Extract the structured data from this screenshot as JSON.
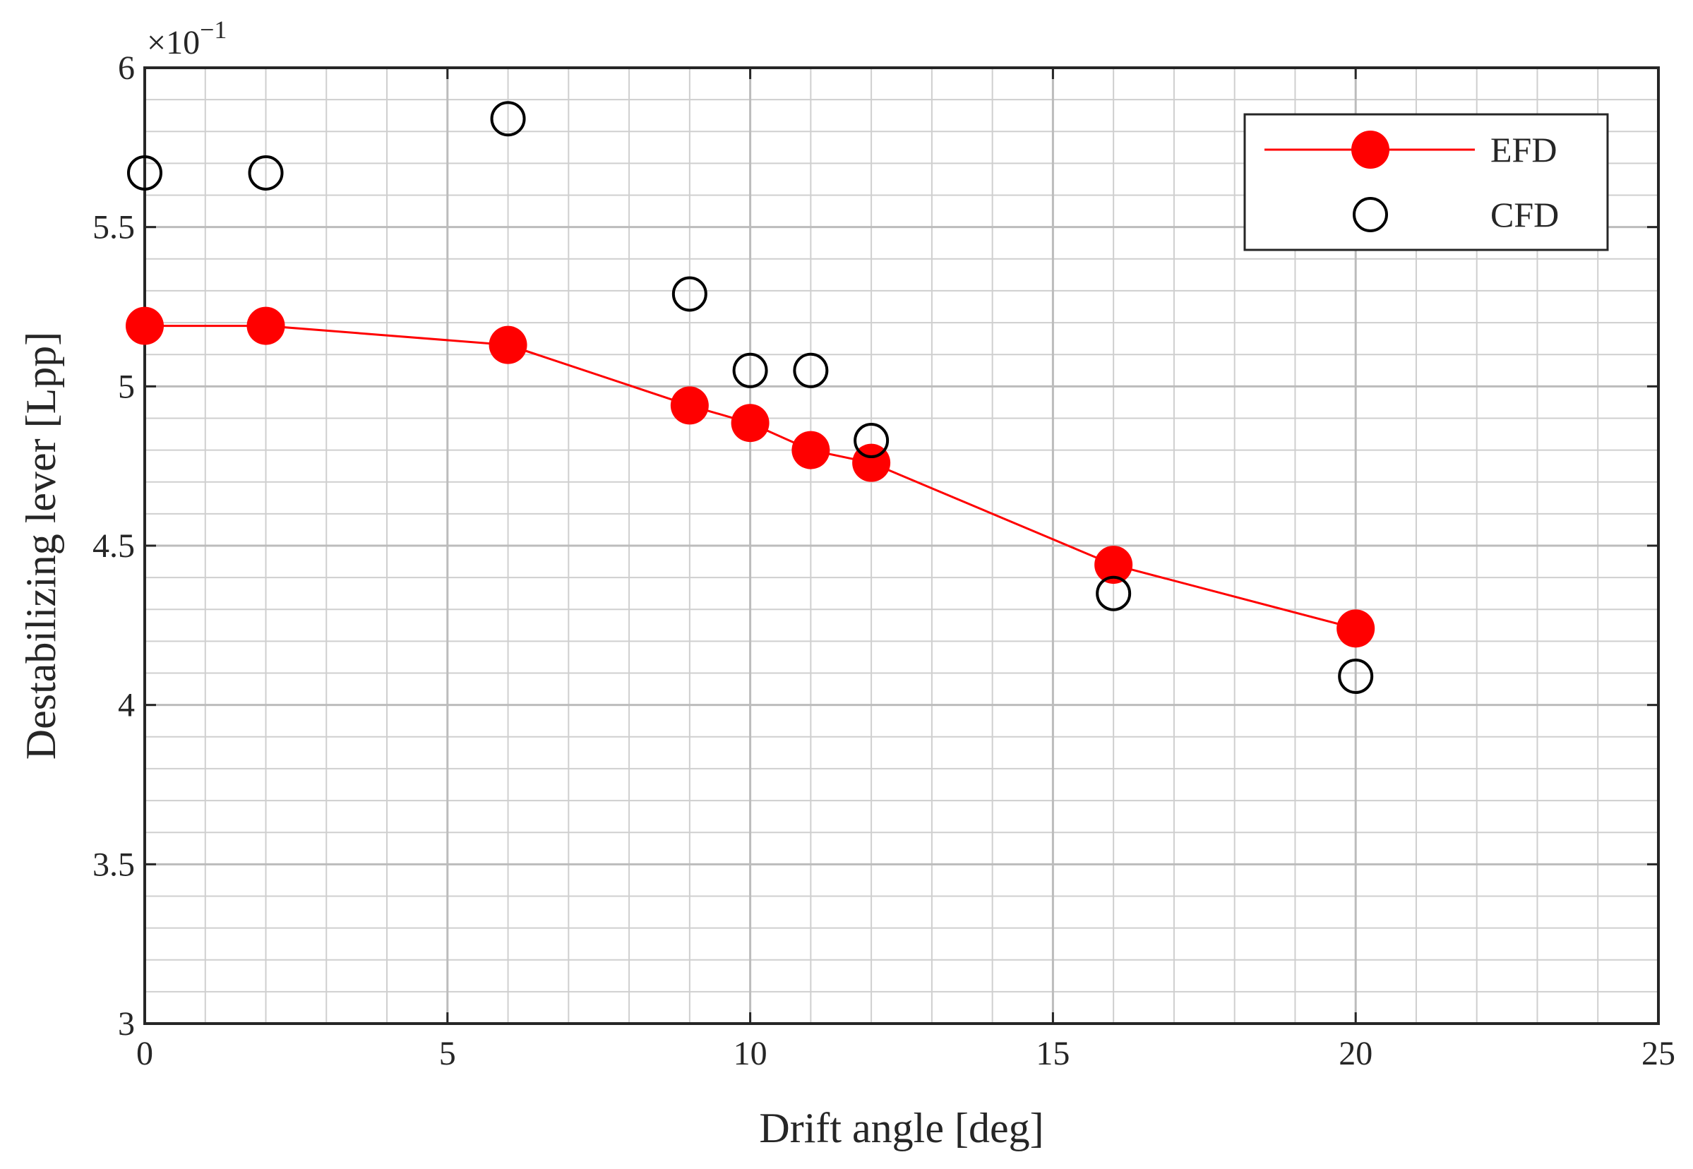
{
  "chart_data": {
    "type": "line",
    "x_label": "Drift angle [deg]",
    "y_label": "Destabilizing lever [Lpp]",
    "y_multiplier": {
      "base": "×10",
      "exponent": "−1"
    },
    "xlim": [
      0,
      25
    ],
    "xticks": [
      0,
      5,
      10,
      15,
      20,
      25
    ],
    "ylim": [
      3,
      6
    ],
    "yticks": [
      3,
      3.5,
      4,
      4.5,
      5,
      5.5,
      6
    ],
    "grid": true,
    "minor_grid": true,
    "legend": "upper right",
    "series": [
      {
        "name": "EFD",
        "color": "#ff0000",
        "marker": "filled",
        "line": true,
        "x": [
          0,
          2,
          6,
          9,
          10,
          11,
          12,
          16,
          20
        ],
        "values": [
          5.19,
          5.19,
          5.13,
          4.94,
          4.885,
          4.8,
          4.76,
          4.44,
          4.24
        ]
      },
      {
        "name": "CFD",
        "color": "#000000",
        "marker": "open",
        "line": false,
        "x": [
          0,
          2,
          6,
          9,
          10,
          11,
          12,
          16,
          20
        ],
        "values": [
          5.67,
          5.67,
          5.84,
          5.29,
          5.05,
          5.05,
          4.83,
          4.35,
          4.09
        ]
      }
    ]
  }
}
